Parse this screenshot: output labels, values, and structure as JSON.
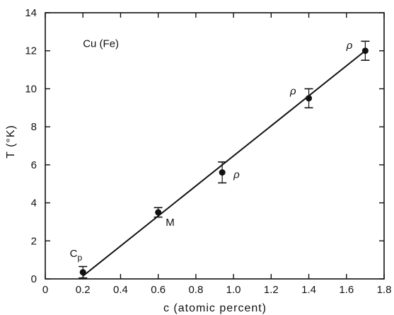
{
  "chart_data": {
    "type": "scatter",
    "xlabel": "c (atomic percent)",
    "ylabel": "T (°K)",
    "xlim": [
      0,
      1.8
    ],
    "ylim": [
      0,
      14
    ],
    "x_ticks": [
      "0",
      "0.2",
      "0.4",
      "0.6",
      "0.8",
      "1.0",
      "1.2",
      "1.4",
      "1.6",
      "1.8"
    ],
    "y_ticks": [
      "0",
      "2",
      "4",
      "6",
      "8",
      "10",
      "12",
      "14"
    ],
    "grid": false,
    "annotations": [
      {
        "text": "Cu (Fe)",
        "x": 0.2,
        "y": 12.2
      },
      {
        "text": "C",
        "sub": "p",
        "x": 0.13,
        "y": 1.15
      },
      {
        "text": "M",
        "x": 0.64,
        "y": 2.8
      },
      {
        "text": "ρ",
        "x": 1.0,
        "y": 5.3
      },
      {
        "text": "ρ",
        "x": 1.3,
        "y": 9.7
      },
      {
        "text": "ρ",
        "x": 1.6,
        "y": 12.1
      }
    ],
    "series": [
      {
        "x": [
          0.2,
          0.6,
          0.94,
          1.4,
          1.7
        ],
        "y": [
          0.35,
          3.5,
          5.6,
          9.5,
          12.0
        ],
        "err_low": [
          0.05,
          3.25,
          5.05,
          9.0,
          11.5
        ],
        "err_high": [
          0.65,
          3.75,
          6.15,
          10.0,
          12.5
        ]
      }
    ],
    "fit_line": {
      "x": [
        0.2,
        1.7
      ],
      "y": [
        0.15,
        12.0
      ]
    }
  }
}
